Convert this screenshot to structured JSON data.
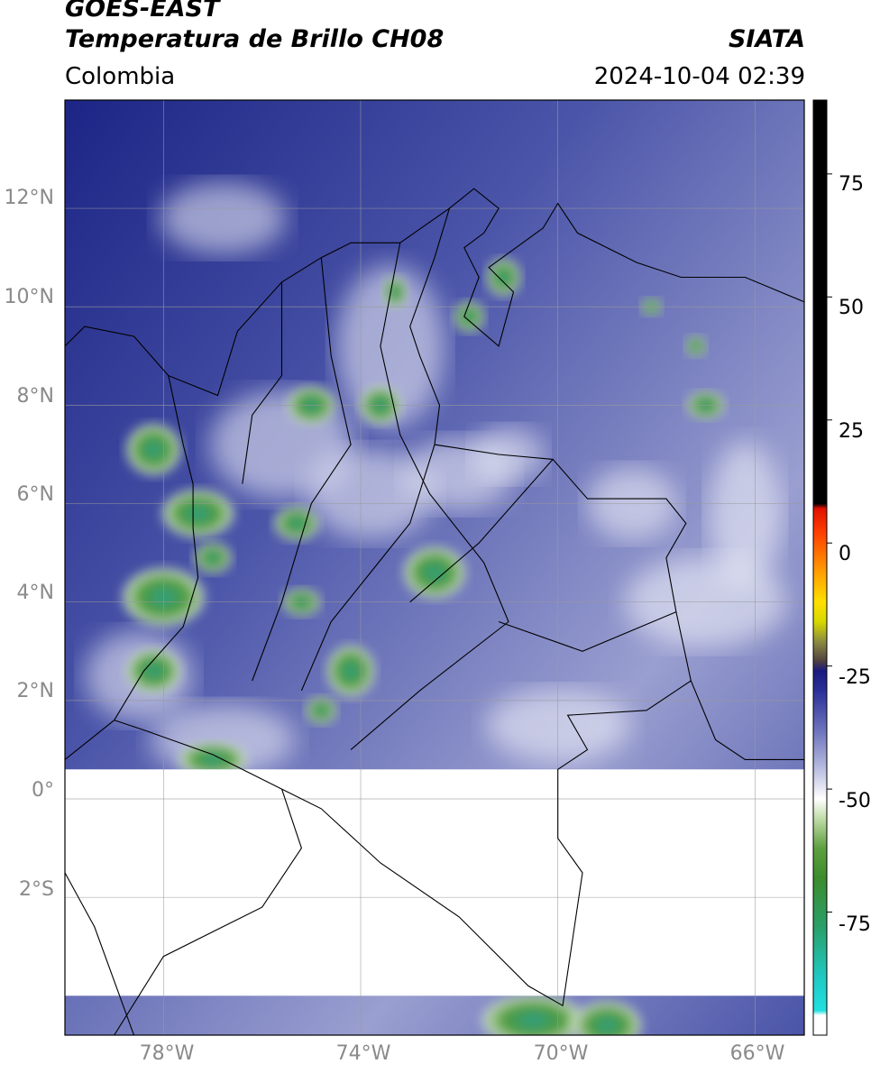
{
  "header": {
    "satellite": "GOES-EAST",
    "product": "Temperatura de Brillo CH08",
    "agency": "SIATA",
    "region": "Colombia",
    "datetime": "2024-10-04 02:39"
  },
  "map": {
    "lon_range": [
      -80.0,
      -65.0
    ],
    "lat_range": [
      -4.8,
      14.2
    ],
    "no_data_lat_band": [
      -4.0,
      0.6
    ],
    "lat_ticks": [
      "12°N",
      "10°N",
      "8°N",
      "6°N",
      "4°N",
      "2°N",
      "0°",
      "2°S"
    ],
    "lat_tick_values": [
      12,
      10,
      8,
      6,
      4,
      2,
      0,
      -2
    ],
    "lon_ticks": [
      "78°W",
      "74°W",
      "70°W",
      "66°W"
    ],
    "lon_tick_values": [
      -78,
      -74,
      -70,
      -66
    ],
    "grid": true,
    "colors": {
      "deep_blue": "#1c2585",
      "mid_blue": "#4a54a8",
      "light_purple": "#9a9fd0",
      "white": "#f4f4fa",
      "green": "#4f9a3a",
      "teal": "#2a9f8a"
    }
  },
  "colorbar": {
    "ticks": [
      "75",
      "50",
      "25",
      "0",
      "-25",
      "-50",
      "-75"
    ],
    "tick_values": [
      75,
      50,
      25,
      0,
      -25,
      -50,
      -75
    ],
    "range": [
      -100,
      90
    ]
  }
}
